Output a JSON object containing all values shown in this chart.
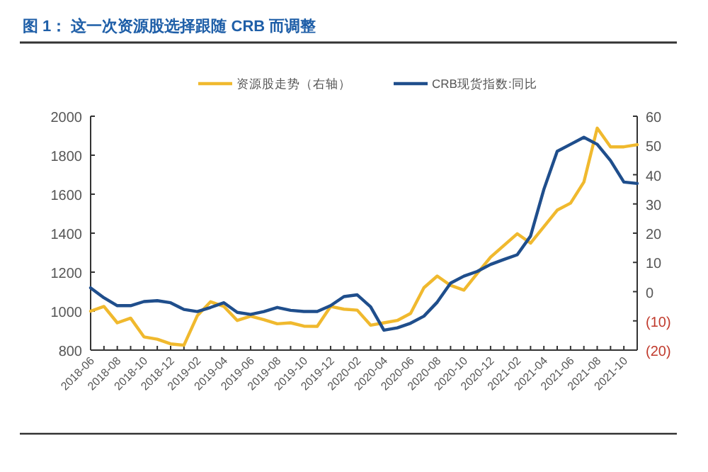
{
  "chart_data": {
    "type": "line",
    "title": "图 1：  这一次资源股选择跟随 CRB 而调整",
    "x": [
      "2018-06",
      "2018-07",
      "2018-08",
      "2018-09",
      "2018-10",
      "2018-11",
      "2018-12",
      "2019-01",
      "2019-02",
      "2019-03",
      "2019-04",
      "2019-05",
      "2019-06",
      "2019-07",
      "2019-08",
      "2019-09",
      "2019-10",
      "2019-11",
      "2019-12",
      "2020-01",
      "2020-02",
      "2020-03",
      "2020-04",
      "2020-05",
      "2020-06",
      "2020-07",
      "2020-08",
      "2020-09",
      "2020-10",
      "2020-11",
      "2020-12",
      "2021-01",
      "2021-02",
      "2021-03",
      "2021-04",
      "2021-05",
      "2021-06",
      "2021-07",
      "2021-08",
      "2021-09",
      "2021-10",
      "2021-11"
    ],
    "series": [
      {
        "name": "资源股走势（右轴）",
        "color": "#f0b92e",
        "values": [
          1000,
          1024,
          940,
          964,
          868,
          856,
          832,
          825,
          976,
          1048,
          1024,
          952,
          974,
          956,
          935,
          940,
          923,
          922,
          1024,
          1010,
          1005,
          928,
          940,
          952,
          988,
          1120,
          1180,
          1132,
          1108,
          1193,
          1277,
          1337,
          1397,
          1349,
          1433,
          1518,
          1554,
          1662,
          1939,
          1843,
          1843,
          1854
        ]
      },
      {
        "name": "CRB现货指数:同比",
        "color": "#1f4e8c",
        "axis": "y2",
        "values": [
          1.3,
          -2.1,
          -4.8,
          -4.8,
          -3.4,
          -3.1,
          -3.8,
          -6.1,
          -6.8,
          -5.4,
          -3.8,
          -7.1,
          -7.8,
          -6.8,
          -5.4,
          -6.4,
          -6.8,
          -6.8,
          -4.8,
          -1.7,
          -1.1,
          -5.2,
          -13.2,
          -12.4,
          -10.8,
          -8.4,
          -3.6,
          2.9,
          5.3,
          6.9,
          9.3,
          11,
          12.6,
          19,
          35,
          48,
          50.4,
          52.8,
          50.4,
          44.8,
          37.5,
          37
        ]
      }
    ],
    "xlim": [
      "2018-06",
      "2021-11"
    ],
    "xticks": [
      {
        "value": "2018-06",
        "label": "2018-06"
      },
      {
        "value": "2018-07",
        "label": null
      },
      {
        "value": "2018-08",
        "label": "2018-08"
      },
      {
        "value": "2018-09",
        "label": null
      },
      {
        "value": "2018-10",
        "label": "2018-10"
      },
      {
        "value": "2018-11",
        "label": null
      },
      {
        "value": "2018-12",
        "label": "2018-12"
      },
      {
        "value": "2019-01",
        "label": null
      },
      {
        "value": "2019-02",
        "label": "2019-02"
      },
      {
        "value": "2019-03",
        "label": null
      },
      {
        "value": "2019-04",
        "label": "2019-04"
      },
      {
        "value": "2019-05",
        "label": null
      },
      {
        "value": "2019-06",
        "label": "2019-06"
      },
      {
        "value": "2019-07",
        "label": null
      },
      {
        "value": "2019-08",
        "label": "2019-08"
      },
      {
        "value": "2019-09",
        "label": null
      },
      {
        "value": "2019-10",
        "label": "2019-10"
      },
      {
        "value": "2019-11",
        "label": null
      },
      {
        "value": "2019-12",
        "label": "2019-12"
      },
      {
        "value": "2020-01",
        "label": null
      },
      {
        "value": "2020-02",
        "label": "2020-02"
      },
      {
        "value": "2020-03",
        "label": null
      },
      {
        "value": "2020-04",
        "label": "2020-04"
      },
      {
        "value": "2020-05",
        "label": null
      },
      {
        "value": "2020-06",
        "label": "2020-06"
      },
      {
        "value": "2020-07",
        "label": null
      },
      {
        "value": "2020-08",
        "label": "2020-08"
      },
      {
        "value": "2020-09",
        "label": null
      },
      {
        "value": "2020-10",
        "label": "2020-10"
      },
      {
        "value": "2020-11",
        "label": null
      },
      {
        "value": "2020-12",
        "label": "2020-12"
      },
      {
        "value": "2021-01",
        "label": null
      },
      {
        "value": "2021-02",
        "label": "2021-02"
      },
      {
        "value": "2021-03",
        "label": null
      },
      {
        "value": "2021-04",
        "label": "2021-04"
      },
      {
        "value": "2021-05",
        "label": null
      },
      {
        "value": "2021-06",
        "label": "2021-06"
      },
      {
        "value": "2021-07",
        "label": null
      },
      {
        "value": "2021-08",
        "label": "2021-08"
      },
      {
        "value": "2021-09",
        "label": null
      },
      {
        "value": "2021-10",
        "label": "2021-10"
      }
    ],
    "ylim": [
      800,
      2000
    ],
    "yticks": [
      800,
      1000,
      1200,
      1400,
      1600,
      1800,
      2000
    ],
    "y2lim": [
      -20,
      60
    ],
    "y2ticks": [
      {
        "value": -20,
        "label": "(20)"
      },
      {
        "value": -10,
        "label": "(10)"
      },
      0,
      10,
      20,
      30,
      40,
      50,
      60
    ],
    "legend": "top",
    "grid": false,
    "marker": "none",
    "line_style": "solid"
  }
}
